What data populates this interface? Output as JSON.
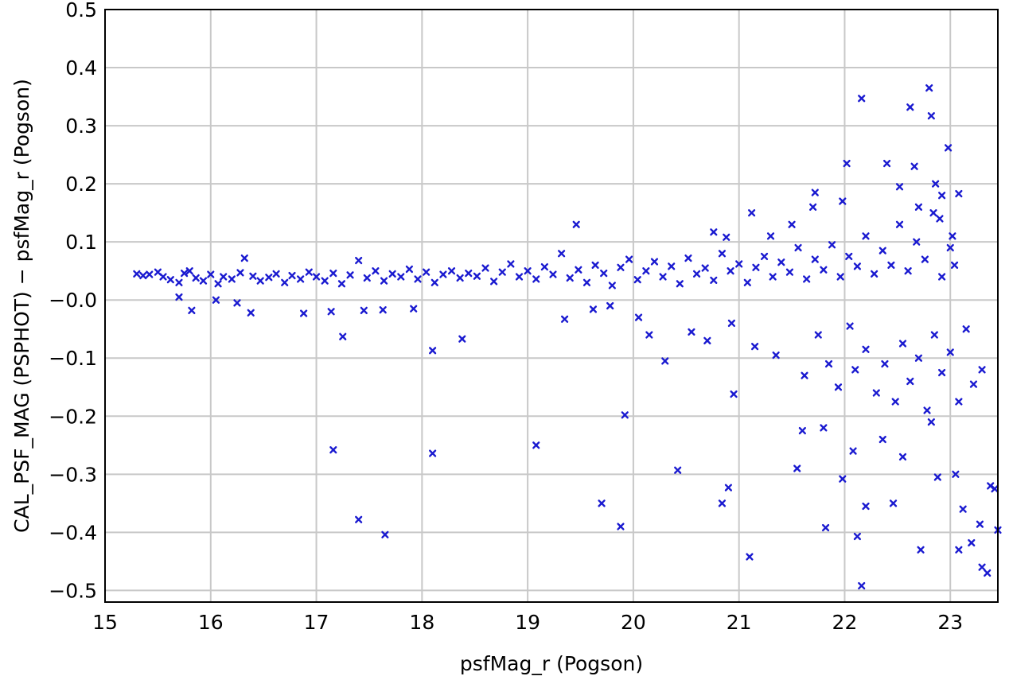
{
  "chart_data": {
    "type": "scatter",
    "title": "",
    "xlabel": "psfMag_r (Pogson)",
    "ylabel": "CAL_PSF_MAG (PSPHOT) − psfMag_r (Pogson)",
    "xlim": [
      15,
      23.45
    ],
    "ylim": [
      -0.52,
      0.5
    ],
    "x_ticks": [
      15,
      16,
      17,
      18,
      19,
      20,
      21,
      22,
      23
    ],
    "x_tick_labels": [
      "15",
      "16",
      "17",
      "18",
      "19",
      "20",
      "21",
      "22",
      "23"
    ],
    "y_ticks": [
      -0.5,
      -0.4,
      -0.3,
      -0.2,
      -0.1,
      0.0,
      0.1,
      0.2,
      0.3,
      0.4,
      0.5
    ],
    "y_tick_labels": [
      "−0.5",
      "−0.4",
      "−0.3",
      "−0.2",
      "−0.1",
      "−0.0",
      "0.1",
      "0.2",
      "0.3",
      "0.4",
      "0.5"
    ],
    "grid": true,
    "marker": "x",
    "color": "#1a1ad0",
    "series": [
      {
        "points": [
          [
            15.3,
            0.045
          ],
          [
            15.36,
            0.042
          ],
          [
            15.42,
            0.044
          ],
          [
            15.5,
            0.048
          ],
          [
            15.55,
            0.04
          ],
          [
            15.62,
            0.035
          ],
          [
            15.7,
            0.03
          ],
          [
            15.75,
            0.046
          ],
          [
            15.8,
            0.05
          ],
          [
            15.86,
            0.038
          ],
          [
            15.93,
            0.033
          ],
          [
            16.0,
            0.044
          ],
          [
            16.07,
            0.028
          ],
          [
            16.12,
            0.04
          ],
          [
            16.2,
            0.036
          ],
          [
            16.28,
            0.047
          ],
          [
            16.32,
            0.072
          ],
          [
            16.4,
            0.041
          ],
          [
            16.47,
            0.033
          ],
          [
            16.55,
            0.039
          ],
          [
            16.62,
            0.045
          ],
          [
            16.7,
            0.03
          ],
          [
            16.77,
            0.042
          ],
          [
            16.85,
            0.036
          ],
          [
            16.93,
            0.048
          ],
          [
            17.0,
            0.04
          ],
          [
            17.08,
            0.033
          ],
          [
            17.16,
            0.046
          ],
          [
            17.24,
            0.028
          ],
          [
            17.32,
            0.043
          ],
          [
            17.4,
            0.068
          ],
          [
            17.48,
            0.038
          ],
          [
            17.56,
            0.05
          ],
          [
            17.64,
            0.033
          ],
          [
            17.72,
            0.045
          ],
          [
            17.8,
            0.04
          ],
          [
            17.88,
            0.053
          ],
          [
            17.96,
            0.036
          ],
          [
            18.04,
            0.048
          ],
          [
            18.12,
            0.03
          ],
          [
            18.2,
            0.044
          ],
          [
            18.28,
            0.05
          ],
          [
            18.36,
            0.038
          ],
          [
            18.44,
            0.046
          ],
          [
            18.52,
            0.041
          ],
          [
            18.6,
            0.055
          ],
          [
            18.68,
            0.032
          ],
          [
            18.76,
            0.048
          ],
          [
            18.84,
            0.062
          ],
          [
            18.92,
            0.04
          ],
          [
            19.0,
            0.05
          ],
          [
            19.08,
            0.036
          ],
          [
            19.16,
            0.057
          ],
          [
            19.24,
            0.044
          ],
          [
            19.32,
            0.08
          ],
          [
            19.4,
            0.038
          ],
          [
            19.48,
            0.052
          ],
          [
            19.56,
            0.03
          ],
          [
            19.64,
            0.06
          ],
          [
            19.72,
            0.046
          ],
          [
            19.8,
            0.025
          ],
          [
            19.88,
            0.056
          ],
          [
            19.96,
            0.07
          ],
          [
            20.04,
            0.035
          ],
          [
            20.12,
            0.05
          ],
          [
            20.2,
            0.066
          ],
          [
            20.28,
            0.04
          ],
          [
            20.36,
            0.058
          ],
          [
            20.44,
            0.028
          ],
          [
            20.52,
            0.072
          ],
          [
            20.6,
            0.045
          ],
          [
            20.68,
            0.055
          ],
          [
            20.76,
            0.034
          ],
          [
            20.84,
            0.08
          ],
          [
            20.92,
            0.05
          ],
          [
            21.0,
            0.062
          ],
          [
            21.08,
            0.03
          ],
          [
            21.16,
            0.056
          ],
          [
            21.24,
            0.075
          ],
          [
            21.32,
            0.04
          ],
          [
            21.4,
            0.065
          ],
          [
            21.48,
            0.048
          ],
          [
            21.56,
            0.09
          ],
          [
            21.64,
            0.036
          ],
          [
            21.72,
            0.07
          ],
          [
            21.8,
            0.052
          ],
          [
            21.88,
            0.095
          ],
          [
            21.96,
            0.04
          ],
          [
            22.04,
            0.075
          ],
          [
            22.12,
            0.058
          ],
          [
            22.2,
            0.11
          ],
          [
            22.28,
            0.045
          ],
          [
            22.36,
            0.085
          ],
          [
            22.44,
            0.06
          ],
          [
            22.52,
            0.13
          ],
          [
            22.6,
            0.05
          ],
          [
            22.68,
            0.1
          ],
          [
            22.76,
            0.07
          ],
          [
            22.84,
            0.15
          ],
          [
            22.92,
            0.04
          ],
          [
            23.0,
            0.09
          ],
          [
            23.04,
            0.06
          ],
          [
            15.7,
            0.005
          ],
          [
            15.82,
            -0.018
          ],
          [
            16.05,
            0.0
          ],
          [
            16.25,
            -0.005
          ],
          [
            16.38,
            -0.022
          ],
          [
            16.88,
            -0.023
          ],
          [
            17.14,
            -0.02
          ],
          [
            17.25,
            -0.063
          ],
          [
            17.45,
            -0.018
          ],
          [
            17.63,
            -0.017
          ],
          [
            17.92,
            -0.015
          ],
          [
            18.1,
            -0.087
          ],
          [
            18.38,
            -0.067
          ],
          [
            19.35,
            -0.033
          ],
          [
            19.62,
            -0.016
          ],
          [
            19.78,
            -0.01
          ],
          [
            20.05,
            -0.03
          ],
          [
            20.15,
            -0.06
          ],
          [
            20.3,
            -0.105
          ],
          [
            20.55,
            -0.055
          ],
          [
            20.7,
            -0.07
          ],
          [
            20.93,
            -0.04
          ],
          [
            21.15,
            -0.08
          ],
          [
            21.35,
            -0.095
          ],
          [
            21.62,
            -0.13
          ],
          [
            21.75,
            -0.06
          ],
          [
            21.85,
            -0.11
          ],
          [
            21.94,
            -0.15
          ],
          [
            22.05,
            -0.045
          ],
          [
            22.1,
            -0.12
          ],
          [
            22.2,
            -0.085
          ],
          [
            22.3,
            -0.16
          ],
          [
            22.38,
            -0.11
          ],
          [
            22.48,
            -0.175
          ],
          [
            22.55,
            -0.075
          ],
          [
            22.62,
            -0.14
          ],
          [
            22.7,
            -0.1
          ],
          [
            22.78,
            -0.19
          ],
          [
            22.85,
            -0.06
          ],
          [
            22.92,
            -0.125
          ],
          [
            23.0,
            -0.09
          ],
          [
            23.08,
            -0.175
          ],
          [
            23.15,
            -0.05
          ],
          [
            23.22,
            -0.145
          ],
          [
            23.3,
            -0.12
          ],
          [
            17.16,
            -0.258
          ],
          [
            17.4,
            -0.378
          ],
          [
            17.65,
            -0.404
          ],
          [
            18.1,
            -0.264
          ],
          [
            19.08,
            -0.25
          ],
          [
            19.7,
            -0.35
          ],
          [
            19.88,
            -0.39
          ],
          [
            19.92,
            -0.198
          ],
          [
            20.42,
            -0.293
          ],
          [
            20.84,
            -0.35
          ],
          [
            20.9,
            -0.323
          ],
          [
            20.95,
            -0.162
          ],
          [
            21.1,
            -0.442
          ],
          [
            21.55,
            -0.29
          ],
          [
            21.6,
            -0.225
          ],
          [
            21.8,
            -0.22
          ],
          [
            21.82,
            -0.392
          ],
          [
            21.98,
            -0.308
          ],
          [
            22.08,
            -0.26
          ],
          [
            22.12,
            -0.407
          ],
          [
            22.16,
            -0.492
          ],
          [
            22.2,
            -0.355
          ],
          [
            22.36,
            -0.24
          ],
          [
            22.46,
            -0.35
          ],
          [
            22.55,
            -0.27
          ],
          [
            22.72,
            -0.43
          ],
          [
            22.82,
            -0.21
          ],
          [
            22.88,
            -0.305
          ],
          [
            23.05,
            -0.3
          ],
          [
            23.08,
            -0.43
          ],
          [
            23.12,
            -0.36
          ],
          [
            23.2,
            -0.418
          ],
          [
            23.28,
            -0.386
          ],
          [
            23.3,
            -0.46
          ],
          [
            23.35,
            -0.47
          ],
          [
            23.38,
            -0.32
          ],
          [
            23.42,
            -0.325
          ],
          [
            23.45,
            -0.396
          ],
          [
            19.46,
            0.13
          ],
          [
            20.76,
            0.117
          ],
          [
            20.88,
            0.108
          ],
          [
            21.12,
            0.15
          ],
          [
            21.3,
            0.11
          ],
          [
            21.5,
            0.13
          ],
          [
            21.7,
            0.16
          ],
          [
            21.72,
            0.185
          ],
          [
            21.98,
            0.17
          ],
          [
            22.02,
            0.235
          ],
          [
            22.16,
            0.347
          ],
          [
            22.4,
            0.235
          ],
          [
            22.52,
            0.195
          ],
          [
            22.62,
            0.332
          ],
          [
            22.66,
            0.23
          ],
          [
            22.8,
            0.365
          ],
          [
            22.82,
            0.317
          ],
          [
            22.86,
            0.2
          ],
          [
            22.98,
            0.262
          ],
          [
            22.92,
            0.18
          ],
          [
            23.08,
            0.183
          ],
          [
            22.7,
            0.16
          ],
          [
            22.9,
            0.14
          ],
          [
            23.02,
            0.11
          ]
        ]
      }
    ]
  }
}
